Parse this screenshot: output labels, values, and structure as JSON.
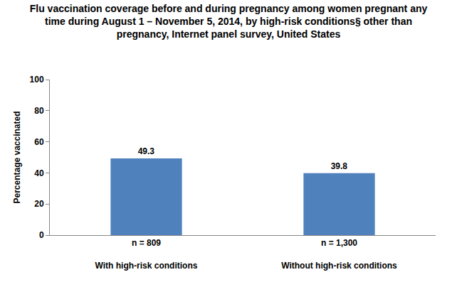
{
  "chart_data": {
    "type": "bar",
    "title": "Flu vaccination coverage before and during pregnancy among women pregnant any time during August 1 – November 5, 2014, by high-risk conditions§ other than pregnancy, Internet panel survey, United States",
    "y_label": "Percentage vaccinated",
    "categories": [
      "With high-risk conditions",
      "Without high-risk conditions"
    ],
    "category_notes": [
      "n = 809",
      "n = 1,300"
    ],
    "values": [
      49.3,
      39.8
    ],
    "color": "#4f81bd",
    "ylim": [
      0,
      100
    ],
    "yticks": [
      0,
      20,
      40,
      60,
      80,
      100
    ],
    "grid": false,
    "data_labels": true
  }
}
